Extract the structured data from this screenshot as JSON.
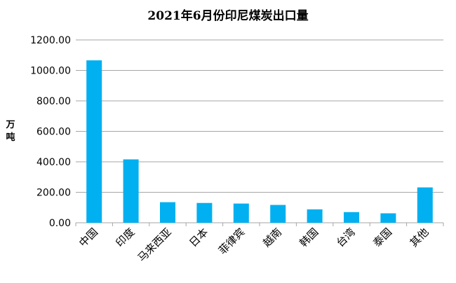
{
  "chart_data": {
    "type": "bar",
    "title": "2021年6月份印尼煤炭出口量",
    "xlabel": "",
    "ylabel": "万吨",
    "categories": [
      "中国",
      "印度",
      "马来西亚",
      "日本",
      "菲律宾",
      "越南",
      "韩国",
      "台湾",
      "泰国",
      "其他"
    ],
    "values": [
      1066,
      416,
      135,
      130,
      126,
      117,
      88,
      70,
      62,
      232
    ],
    "ylim": [
      0,
      1200
    ],
    "yticks": [
      "0.00",
      "200.00",
      "400.00",
      "600.00",
      "800.00",
      "1000.00",
      "1200.00"
    ],
    "grid": true,
    "bar_color": "#00B0F0"
  }
}
